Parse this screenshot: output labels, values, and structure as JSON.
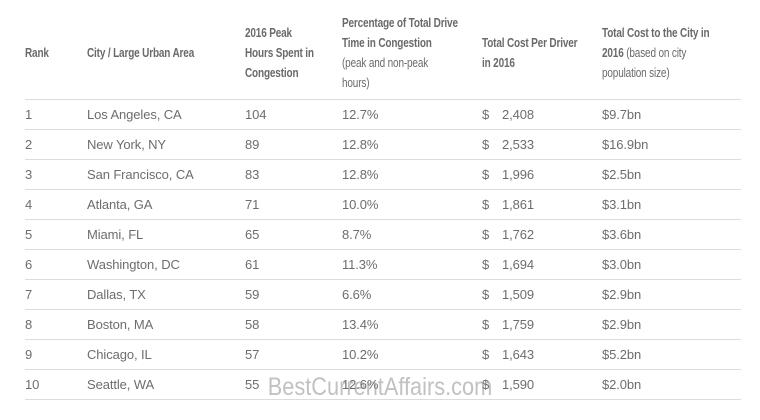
{
  "page": {
    "watermark": "BestCurrentAffairs.com"
  },
  "colors": {
    "background": "#ffffff",
    "text": "#6d6d6d",
    "header_text": "#6a6a6a",
    "divider": "#dcdcdc",
    "watermark": "#8f8f8f"
  },
  "table": {
    "columns": [
      {
        "label": "Rank",
        "note": ""
      },
      {
        "label": "City / Large Urban Area",
        "note": ""
      },
      {
        "label": "2016 Peak\nHours Spent in\nCongestion",
        "note": ""
      },
      {
        "label": "Percentage of Total Drive\nTime in Congestion\n",
        "note": "(peak and non-peak\nhours)"
      },
      {
        "label": "Total Cost Per Driver\nin 2016",
        "note": ""
      },
      {
        "label": "Total Cost to the City in\n2016 ",
        "note": "(based on city\npopulation size)"
      }
    ],
    "rows": [
      {
        "rank": "1",
        "city": "Los Angeles, CA",
        "peak_hours": "104",
        "pct_drive_time": "12.7%",
        "currency": "$",
        "cost_per_driver": "2,408",
        "cost_to_city": "$9.7bn"
      },
      {
        "rank": "2",
        "city": "New York, NY",
        "peak_hours": "89",
        "pct_drive_time": "12.8%",
        "currency": "$",
        "cost_per_driver": "2,533",
        "cost_to_city": "$16.9bn"
      },
      {
        "rank": "3",
        "city": "San Francisco, CA",
        "peak_hours": "83",
        "pct_drive_time": "12.8%",
        "currency": "$",
        "cost_per_driver": "1,996",
        "cost_to_city": "$2.5bn"
      },
      {
        "rank": "4",
        "city": "Atlanta, GA",
        "peak_hours": "71",
        "pct_drive_time": "10.0%",
        "currency": "$",
        "cost_per_driver": "1,861",
        "cost_to_city": "$3.1bn"
      },
      {
        "rank": "5",
        "city": "Miami, FL",
        "peak_hours": "65",
        "pct_drive_time": "8.7%",
        "currency": "$",
        "cost_per_driver": "1,762",
        "cost_to_city": "$3.6bn"
      },
      {
        "rank": "6",
        "city": "Washington, DC",
        "peak_hours": "61",
        "pct_drive_time": "11.3%",
        "currency": "$",
        "cost_per_driver": "1,694",
        "cost_to_city": "$3.0bn"
      },
      {
        "rank": "7",
        "city": "Dallas, TX",
        "peak_hours": "59",
        "pct_drive_time": "6.6%",
        "currency": "$",
        "cost_per_driver": "1,509",
        "cost_to_city": "$2.9bn"
      },
      {
        "rank": "8",
        "city": "Boston, MA",
        "peak_hours": "58",
        "pct_drive_time": "13.4%",
        "currency": "$",
        "cost_per_driver": "1,759",
        "cost_to_city": "$2.9bn"
      },
      {
        "rank": "9",
        "city": "Chicago, IL",
        "peak_hours": "57",
        "pct_drive_time": "10.2%",
        "currency": "$",
        "cost_per_driver": "1,643",
        "cost_to_city": "$5.2bn"
      },
      {
        "rank": "10",
        "city": "Seattle, WA",
        "peak_hours": "55",
        "pct_drive_time": "12.6%",
        "currency": "$",
        "cost_per_driver": "1,590",
        "cost_to_city": "$2.0bn"
      }
    ]
  },
  "chart_data": {
    "type": "table",
    "columns": [
      "Rank",
      "City / Large Urban Area",
      "2016 Peak Hours Spent in Congestion",
      "Percentage of Total Drive Time in Congestion (peak and non-peak hours)",
      "Total Cost Per Driver in 2016",
      "Total Cost to the City in 2016 (based on city population size)"
    ],
    "rows": [
      [
        1,
        "Los Angeles, CA",
        104,
        "12.7%",
        "$2,408",
        "$9.7bn"
      ],
      [
        2,
        "New York, NY",
        89,
        "12.8%",
        "$2,533",
        "$16.9bn"
      ],
      [
        3,
        "San Francisco, CA",
        83,
        "12.8%",
        "$1,996",
        "$2.5bn"
      ],
      [
        4,
        "Atlanta, GA",
        71,
        "10.0%",
        "$1,861",
        "$3.1bn"
      ],
      [
        5,
        "Miami, FL",
        65,
        "8.7%",
        "$1,762",
        "$3.6bn"
      ],
      [
        6,
        "Washington, DC",
        61,
        "11.3%",
        "$1,694",
        "$3.0bn"
      ],
      [
        7,
        "Dallas, TX",
        59,
        "6.6%",
        "$1,509",
        "$2.9bn"
      ],
      [
        8,
        "Boston, MA",
        58,
        "13.4%",
        "$1,759",
        "$2.9bn"
      ],
      [
        9,
        "Chicago, IL",
        57,
        "10.2%",
        "$1,643",
        "$5.2bn"
      ],
      [
        10,
        "Seattle, WA",
        55,
        "12.6%",
        "$1,590",
        "$2.0bn"
      ]
    ]
  }
}
